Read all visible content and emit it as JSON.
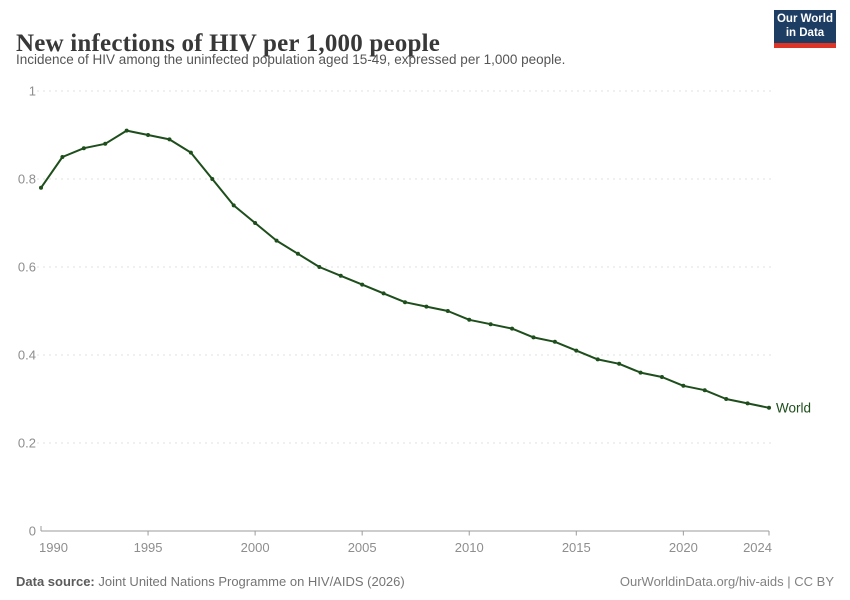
{
  "header": {
    "title": "New infections of HIV per 1,000 people",
    "subtitle": "Incidence of HIV among the uninfected population aged 15-49, expressed per 1,000 people."
  },
  "logo": {
    "line1": "Our World",
    "line2": "in Data"
  },
  "chart_data": {
    "type": "line",
    "title": "New infections of HIV per 1,000 people",
    "xlabel": "",
    "ylabel": "",
    "ylim": [
      0,
      1
    ],
    "yticks": [
      0,
      0.2,
      0.4,
      0.6,
      0.8,
      1
    ],
    "xticks": [
      1990,
      1995,
      2000,
      2005,
      2010,
      2015,
      2020,
      2024
    ],
    "grid": "dashed-horizontal",
    "legend_position": "end-of-line-label",
    "x": [
      1990,
      1991,
      1992,
      1993,
      1994,
      1995,
      1996,
      1997,
      1998,
      1999,
      2000,
      2001,
      2002,
      2003,
      2004,
      2005,
      2006,
      2007,
      2008,
      2009,
      2010,
      2011,
      2012,
      2013,
      2014,
      2015,
      2016,
      2017,
      2018,
      2019,
      2020,
      2021,
      2022,
      2023,
      2024
    ],
    "series": [
      {
        "name": "World",
        "color": "#1d4e1b",
        "values": [
          0.78,
          0.85,
          0.87,
          0.88,
          0.91,
          0.9,
          0.89,
          0.86,
          0.8,
          0.74,
          0.7,
          0.66,
          0.63,
          0.6,
          0.58,
          0.56,
          0.54,
          0.52,
          0.51,
          0.5,
          0.48,
          0.47,
          0.46,
          0.44,
          0.43,
          0.41,
          0.39,
          0.38,
          0.36,
          0.35,
          0.33,
          0.32,
          0.3,
          0.29,
          0.28
        ]
      }
    ]
  },
  "colors": {
    "line": "#1d4e1b",
    "grid": "#e2e2e2",
    "axis": "#9b9b9b",
    "tick_label": "#8e8e8e",
    "logo_bg": "#1d3d63",
    "logo_bar": "#dc3426"
  },
  "footer": {
    "source_label": "Data source:",
    "source_text": " Joint United Nations Programme on HIV/AIDS (2026)",
    "url": "OurWorldinData.org/hiv-aids",
    "separator": " | ",
    "license": "CC BY"
  }
}
